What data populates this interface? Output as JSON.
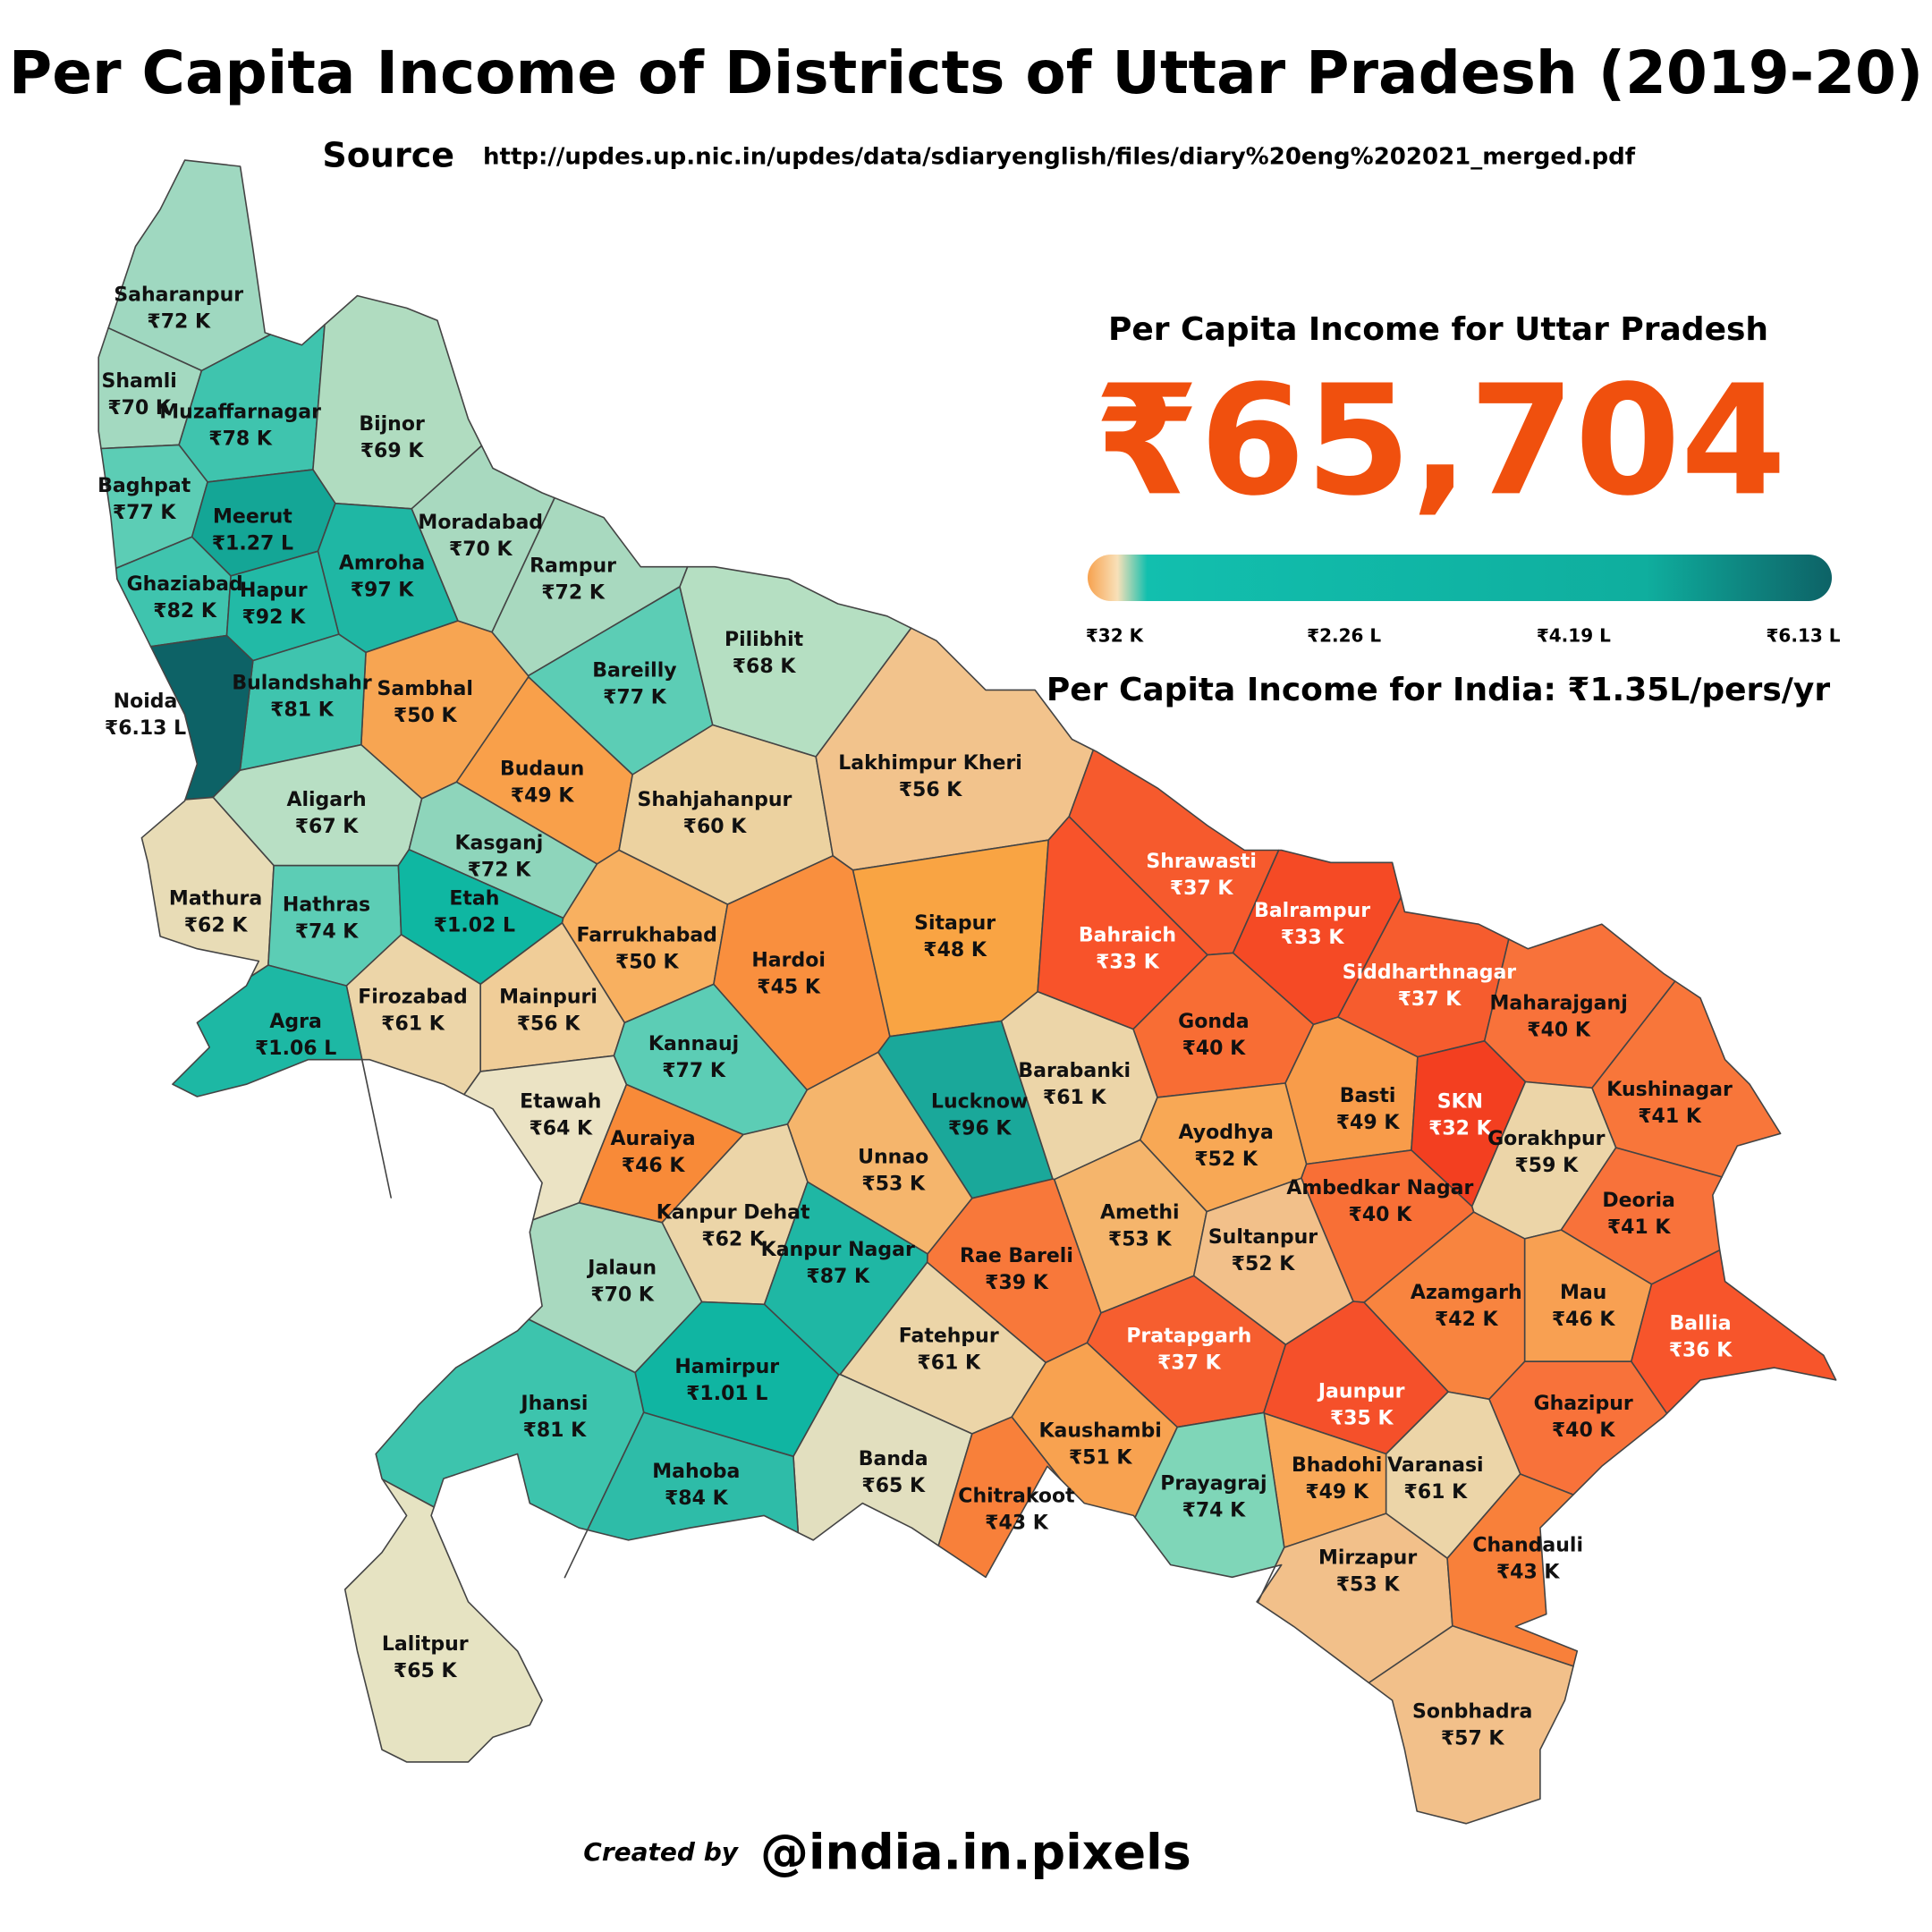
{
  "header": {
    "title": "Per Capita Income of Districts of Uttar Pradesh (2019-20)",
    "source_label": "Source",
    "source_url": "http://updes.up.nic.in/updes/data/sdiaryenglish/files/diary%20eng%202021_merged.pdf"
  },
  "summary": {
    "heading": "Per Capita Income for Uttar Pradesh",
    "value": "₹65,704",
    "india": "Per Capita Income for India: ₹1.35L/pers/yr"
  },
  "legend": {
    "colors": [
      "#f7a24f",
      "#f8e0b8",
      "#12bfae",
      "#0fae9e",
      "#0d6266"
    ],
    "ticks": [
      "₹32 K",
      "₹2.26 L",
      "₹4.19 L",
      "₹6.13 L"
    ]
  },
  "districts": [
    {
      "name": "Saharanpur",
      "income": "₹72 K",
      "color": "#9fd8c0"
    },
    {
      "name": "Shamli",
      "income": "₹70 K",
      "color": "#a3d9c0"
    },
    {
      "name": "Muzaffarnagar",
      "income": "₹78 K",
      "color": "#3fc4ae"
    },
    {
      "name": "Bijnor",
      "income": "₹69 K",
      "color": "#b0dcc0"
    },
    {
      "name": "Baghpat",
      "income": "₹77 K",
      "color": "#5ccdb5"
    },
    {
      "name": "Meerut",
      "income": "₹1.27 L",
      "color": "#14a696"
    },
    {
      "name": "Moradabad",
      "income": "₹70 K",
      "color": "#a8d9bf"
    },
    {
      "name": "Amroha",
      "income": "₹97 K",
      "color": "#1fb7a4"
    },
    {
      "name": "Rampur",
      "income": "₹72 K",
      "color": "#a8d9bf"
    },
    {
      "name": "Ghaziabad",
      "income": "₹82 K",
      "color": "#3fc4ae"
    },
    {
      "name": "Hapur",
      "income": "₹92 K",
      "color": "#22baa6"
    },
    {
      "name": "Bareilly",
      "income": "₹77 K",
      "color": "#5ccdb5"
    },
    {
      "name": "Pilibhit",
      "income": "₹68 K",
      "color": "#b5dfc2"
    },
    {
      "name": "Sambhal",
      "income": "₹50 K",
      "color": "#f7a552"
    },
    {
      "name": "Bulandshahr",
      "income": "₹81 K",
      "color": "#3fc4ae"
    },
    {
      "name": "Noida",
      "income": "₹6.13 L",
      "color": "#0d6266"
    },
    {
      "name": "Budaun",
      "income": "₹49 K",
      "color": "#f9a04a"
    },
    {
      "name": "Shahjahanpur",
      "income": "₹60 K",
      "color": "#ecd2a0"
    },
    {
      "name": "Lakhimpur Kheri",
      "income": "₹56 K",
      "color": "#f2c38c"
    },
    {
      "name": "Aligarh",
      "income": "₹67 K",
      "color": "#b8dfc4"
    },
    {
      "name": "Kasganj",
      "income": "₹72 K",
      "color": "#8ed5bb"
    },
    {
      "name": "Mathura",
      "income": "₹62 K",
      "color": "#e8dcb6"
    },
    {
      "name": "Hathras",
      "income": "₹74 K",
      "color": "#5ccdb5"
    },
    {
      "name": "Etah",
      "income": "₹1.02 L",
      "color": "#0fb7a2"
    },
    {
      "name": "Farrukhabad",
      "income": "₹50 K",
      "color": "#f8b060"
    },
    {
      "name": "Hardoi",
      "income": "₹45 K",
      "color": "#f98f3e"
    },
    {
      "name": "Sitapur",
      "income": "₹48 K",
      "color": "#f9a443"
    },
    {
      "name": "Bahraich",
      "income": "₹33 K",
      "color": "#f8532a"
    },
    {
      "name": "Shrawasti",
      "income": "₹37 K",
      "color": "#f65a2d"
    },
    {
      "name": "Balrampur",
      "income": "₹33 K",
      "color": "#f54a25"
    },
    {
      "name": "Siddharthnagar",
      "income": "₹37 K",
      "color": "#f65c2e"
    },
    {
      "name": "Maharajganj",
      "income": "₹40 K",
      "color": "#f8723a"
    },
    {
      "name": "Gonda",
      "income": "₹40 K",
      "color": "#f86d34"
    },
    {
      "name": "Firozabad",
      "income": "₹61 K",
      "color": "#ecd5a8"
    },
    {
      "name": "Mainpuri",
      "income": "₹56 K",
      "color": "#f0cd98"
    },
    {
      "name": "Agra",
      "income": "₹1.06 L",
      "color": "#1db8a4"
    },
    {
      "name": "Kannauj",
      "income": "₹77 K",
      "color": "#5ccdb5"
    },
    {
      "name": "Lucknow",
      "income": "₹96 K",
      "color": "#1aa89a"
    },
    {
      "name": "Barabanki",
      "income": "₹61 K",
      "color": "#ecd5a8"
    },
    {
      "name": "Basti",
      "income": "₹49 K",
      "color": "#f89c4a"
    },
    {
      "name": "SKN",
      "income": "₹32 K",
      "color": "#f33f20"
    },
    {
      "name": "Gorakhpur",
      "income": "₹59 K",
      "color": "#ecd5a8"
    },
    {
      "name": "Kushinagar",
      "income": "₹41 K",
      "color": "#f8763a"
    },
    {
      "name": "Etawah",
      "income": "₹64 K",
      "color": "#ebe3c4"
    },
    {
      "name": "Auraiya",
      "income": "₹46 K",
      "color": "#f88a38"
    },
    {
      "name": "Unnao",
      "income": "₹53 K",
      "color": "#f5b56c"
    },
    {
      "name": "Ayodhya",
      "income": "₹52 K",
      "color": "#f8a855"
    },
    {
      "name": "Ambedkar Nagar",
      "income": "₹40 K",
      "color": "#f86f36"
    },
    {
      "name": "Deoria",
      "income": "₹41 K",
      "color": "#f8723a"
    },
    {
      "name": "Kanpur Dehat",
      "income": "₹62 K",
      "color": "#ecd5a8"
    },
    {
      "name": "Amethi",
      "income": "₹53 K",
      "color": "#f5b56c"
    },
    {
      "name": "Kanpur Nagar",
      "income": "₹87 K",
      "color": "#1fb7a4"
    },
    {
      "name": "Jalaun",
      "income": "₹70 K",
      "color": "#a8d9bf"
    },
    {
      "name": "Sultanpur",
      "income": "₹52 K",
      "color": "#f2c08a"
    },
    {
      "name": "Rae Bareli",
      "income": "₹39 K",
      "color": "#f8783a"
    },
    {
      "name": "Azamgarh",
      "income": "₹42 K",
      "color": "#f8843f"
    },
    {
      "name": "Mau",
      "income": "₹46 K",
      "color": "#f8a052"
    },
    {
      "name": "Ballia",
      "income": "₹36 K",
      "color": "#f7552b"
    },
    {
      "name": "Pratapgarh",
      "income": "₹37 K",
      "color": "#f65e2f"
    },
    {
      "name": "Fatehpur",
      "income": "₹61 K",
      "color": "#ecd5a8"
    },
    {
      "name": "Hamirpur",
      "income": "₹1.01 L",
      "color": "#10b5a2"
    },
    {
      "name": "Jaunpur",
      "income": "₹35 K",
      "color": "#f5502a"
    },
    {
      "name": "Ghazipur",
      "income": "₹40 K",
      "color": "#f8723a"
    },
    {
      "name": "Jhansi",
      "income": "₹81 K",
      "color": "#3dc4ad"
    },
    {
      "name": "Kaushambi",
      "income": "₹51 K",
      "color": "#f8a250"
    },
    {
      "name": "Banda",
      "income": "₹65 K",
      "color": "#e2dfbf"
    },
    {
      "name": "Mahoba",
      "income": "₹84 K",
      "color": "#2ebca8"
    },
    {
      "name": "Bhadohi",
      "income": "₹49 K",
      "color": "#f8a858"
    },
    {
      "name": "Varanasi",
      "income": "₹61 K",
      "color": "#ecd5a8"
    },
    {
      "name": "Chitrakoot",
      "income": "₹43 K",
      "color": "#f8803a"
    },
    {
      "name": "Prayagraj",
      "income": "₹74 K",
      "color": "#7fd6b8"
    },
    {
      "name": "Mirzapur",
      "income": "₹53 K",
      "color": "#f2c08a"
    },
    {
      "name": "Chandauli",
      "income": "₹43 K",
      "color": "#f8803a"
    },
    {
      "name": "Sonbhadra",
      "income": "₹57 K",
      "color": "#f2c08a"
    },
    {
      "name": "Lalitpur",
      "income": "₹65 K",
      "color": "#e6e3c2"
    }
  ],
  "credit": {
    "prefix": "Created by",
    "handle": "@india.in.pixels"
  }
}
